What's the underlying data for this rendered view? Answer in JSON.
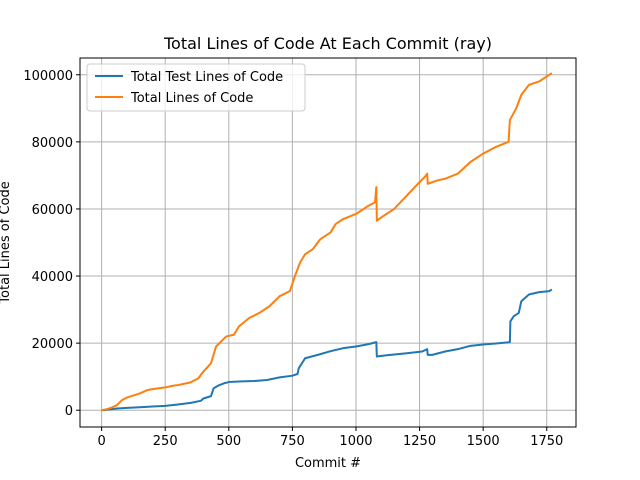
{
  "chart_data": {
    "type": "line",
    "title": "Total Lines of Code At Each Commit (ray)",
    "xlabel": "Commit #",
    "ylabel": "Total Lines of Code",
    "xlim": [
      -85,
      1865
    ],
    "ylim": [
      -5000,
      105000
    ],
    "x_ticks": [
      0,
      250,
      500,
      750,
      1000,
      1250,
      1500,
      1750
    ],
    "y_ticks": [
      0,
      20000,
      40000,
      60000,
      80000,
      100000
    ],
    "grid": true,
    "legend_position": "top-left",
    "series": [
      {
        "name": "Total Test Lines of Code",
        "color": "#1f77b4",
        "points": [
          [
            0,
            0
          ],
          [
            30,
            200
          ],
          [
            60,
            500
          ],
          [
            100,
            700
          ],
          [
            150,
            900
          ],
          [
            200,
            1100
          ],
          [
            250,
            1300
          ],
          [
            300,
            1700
          ],
          [
            350,
            2200
          ],
          [
            390,
            2800
          ],
          [
            400,
            3500
          ],
          [
            430,
            4200
          ],
          [
            440,
            6500
          ],
          [
            460,
            7400
          ],
          [
            480,
            8000
          ],
          [
            500,
            8400
          ],
          [
            550,
            8600
          ],
          [
            600,
            8700
          ],
          [
            650,
            9000
          ],
          [
            700,
            9800
          ],
          [
            750,
            10300
          ],
          [
            770,
            10800
          ],
          [
            775,
            12500
          ],
          [
            800,
            15500
          ],
          [
            850,
            16500
          ],
          [
            900,
            17600
          ],
          [
            950,
            18500
          ],
          [
            1000,
            19000
          ],
          [
            1050,
            19700
          ],
          [
            1080,
            20300
          ],
          [
            1082,
            16000
          ],
          [
            1100,
            16200
          ],
          [
            1150,
            16600
          ],
          [
            1200,
            17000
          ],
          [
            1260,
            17500
          ],
          [
            1280,
            18200
          ],
          [
            1282,
            16500
          ],
          [
            1300,
            16500
          ],
          [
            1350,
            17500
          ],
          [
            1400,
            18200
          ],
          [
            1450,
            19200
          ],
          [
            1500,
            19600
          ],
          [
            1550,
            19900
          ],
          [
            1605,
            20300
          ],
          [
            1607,
            26500
          ],
          [
            1620,
            28000
          ],
          [
            1640,
            29000
          ],
          [
            1650,
            32500
          ],
          [
            1680,
            34500
          ],
          [
            1720,
            35200
          ],
          [
            1760,
            35500
          ],
          [
            1770,
            36000
          ]
        ]
      },
      {
        "name": "Total Lines of Code",
        "color": "#ff7f0e",
        "points": [
          [
            0,
            0
          ],
          [
            20,
            300
          ],
          [
            40,
            800
          ],
          [
            60,
            1500
          ],
          [
            80,
            3000
          ],
          [
            100,
            3800
          ],
          [
            150,
            5000
          ],
          [
            180,
            6000
          ],
          [
            200,
            6300
          ],
          [
            250,
            6800
          ],
          [
            280,
            7300
          ],
          [
            300,
            7500
          ],
          [
            350,
            8300
          ],
          [
            380,
            9500
          ],
          [
            400,
            11500
          ],
          [
            430,
            14000
          ],
          [
            450,
            19000
          ],
          [
            470,
            20500
          ],
          [
            490,
            22000
          ],
          [
            520,
            22500
          ],
          [
            540,
            25000
          ],
          [
            580,
            27500
          ],
          [
            620,
            29000
          ],
          [
            660,
            31000
          ],
          [
            700,
            34000
          ],
          [
            740,
            35500
          ],
          [
            760,
            40000
          ],
          [
            780,
            44000
          ],
          [
            800,
            46500
          ],
          [
            830,
            48000
          ],
          [
            860,
            51000
          ],
          [
            900,
            53000
          ],
          [
            920,
            55500
          ],
          [
            950,
            57000
          ],
          [
            1000,
            58500
          ],
          [
            1050,
            61000
          ],
          [
            1075,
            62000
          ],
          [
            1080,
            66500
          ],
          [
            1082,
            56500
          ],
          [
            1100,
            57500
          ],
          [
            1150,
            60000
          ],
          [
            1200,
            64000
          ],
          [
            1250,
            68000
          ],
          [
            1270,
            69500
          ],
          [
            1280,
            70500
          ],
          [
            1282,
            67500
          ],
          [
            1320,
            68500
          ],
          [
            1350,
            69000
          ],
          [
            1400,
            70500
          ],
          [
            1450,
            74000
          ],
          [
            1500,
            76500
          ],
          [
            1550,
            78500
          ],
          [
            1600,
            80000
          ],
          [
            1605,
            86500
          ],
          [
            1630,
            90000
          ],
          [
            1650,
            94000
          ],
          [
            1680,
            97000
          ],
          [
            1720,
            98000
          ],
          [
            1750,
            99500
          ],
          [
            1770,
            100500
          ]
        ]
      }
    ]
  }
}
